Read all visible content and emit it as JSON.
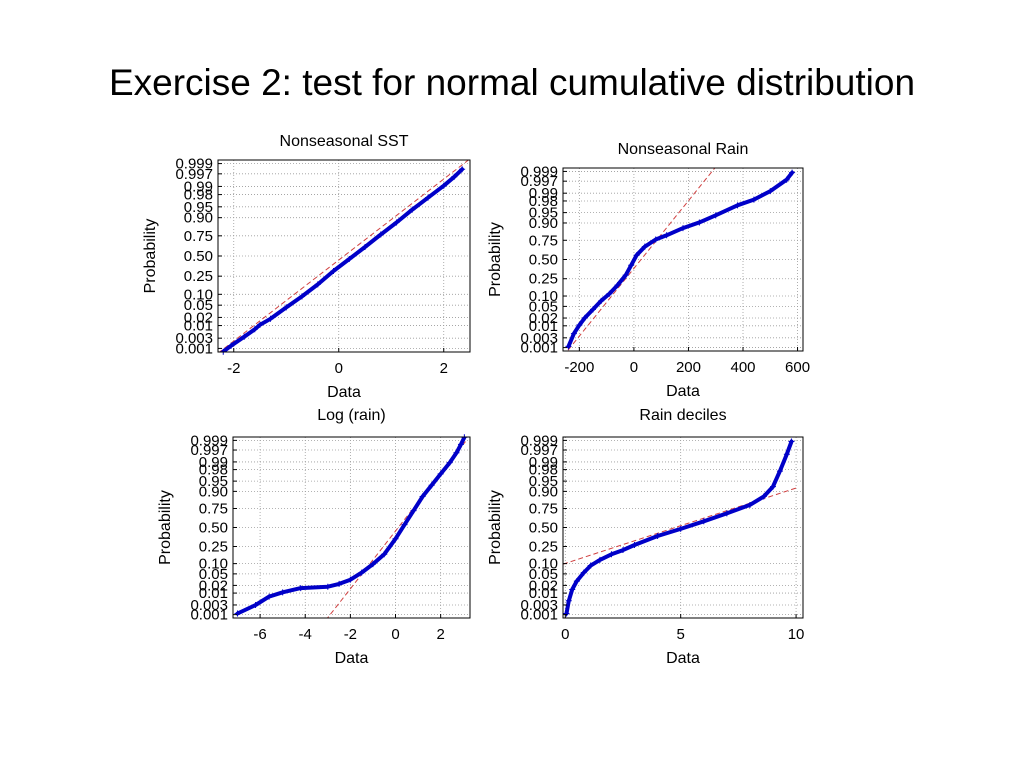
{
  "slide": {
    "title": "Exercise 2: test for normal cumulative distribution"
  },
  "colors": {
    "points": "#0000c8",
    "reference_line": "#d04040",
    "grid": "#9a9a9a",
    "axis": "#000000"
  },
  "chart_data": [
    {
      "type": "scatter",
      "title": "Nonseasonal SST",
      "xlabel": "Data",
      "ylabel": "Probability",
      "xlim": [
        -2.3,
        2.5
      ],
      "xticks": [
        -2,
        0,
        2
      ],
      "xtick_labels": [
        "-2",
        "0",
        "2"
      ],
      "y_scale": "normal-probability",
      "yticks": [
        0.001,
        0.003,
        0.01,
        0.02,
        0.05,
        0.1,
        0.25,
        0.5,
        0.75,
        0.9,
        0.95,
        0.98,
        0.99,
        0.997,
        0.999
      ],
      "ytick_labels": [
        "0.001",
        "0.003",
        "0.01",
        "0.02",
        "0.05",
        "0.10",
        "0.25",
        "0.50",
        "0.75",
        "0.90",
        "0.95",
        "0.98",
        "0.99",
        "0.997",
        "0.999"
      ],
      "grid": true,
      "reference_line": {
        "x": [
          -2.3,
          2.5
        ],
        "z": [
          -3.25,
          3.25
        ]
      },
      "points": [
        [
          -2.2,
          -3.2
        ],
        [
          -2.05,
          -3.0
        ],
        [
          -1.8,
          -2.7
        ],
        [
          -1.6,
          -2.45
        ],
        [
          -1.5,
          -2.3
        ],
        [
          -1.3,
          -2.1
        ],
        [
          -1.0,
          -1.72
        ],
        [
          -0.7,
          -1.35
        ],
        [
          -0.4,
          -0.95
        ],
        [
          -0.1,
          -0.5
        ],
        [
          0.2,
          -0.1
        ],
        [
          0.5,
          0.3
        ],
        [
          0.8,
          0.72
        ],
        [
          1.1,
          1.12
        ],
        [
          1.4,
          1.55
        ],
        [
          1.7,
          1.95
        ],
        [
          2.0,
          2.35
        ],
        [
          2.2,
          2.65
        ],
        [
          2.35,
          2.9
        ]
      ]
    },
    {
      "type": "scatter",
      "title": "Nonseasonal Rain",
      "xlabel": "Data",
      "ylabel": "Probability",
      "xlim": [
        -260,
        620
      ],
      "xticks": [
        -200,
        0,
        200,
        400,
        600
      ],
      "xtick_labels": [
        "-200",
        "0",
        "200",
        "400",
        "600"
      ],
      "y_scale": "normal-probability",
      "yticks": [
        0.001,
        0.003,
        0.01,
        0.02,
        0.05,
        0.1,
        0.25,
        0.5,
        0.75,
        0.9,
        0.95,
        0.98,
        0.99,
        0.997,
        0.999
      ],
      "ytick_labels": [
        "0.001",
        "0.003",
        "0.01",
        "0.02",
        "0.05",
        "0.10",
        "0.25",
        "0.50",
        "0.75",
        "0.90",
        "0.95",
        "0.98",
        "0.99",
        "0.997",
        "0.999"
      ],
      "grid": true,
      "reference_line": {
        "x": [
          -260,
          300
        ],
        "z": [
          -3.4,
          3.25
        ]
      },
      "points": [
        [
          -240,
          -3.05
        ],
        [
          -220,
          -2.6
        ],
        [
          -200,
          -2.3
        ],
        [
          -180,
          -2.05
        ],
        [
          -150,
          -1.75
        ],
        [
          -120,
          -1.45
        ],
        [
          -90,
          -1.2
        ],
        [
          -60,
          -0.9
        ],
        [
          -30,
          -0.55
        ],
        [
          -10,
          -0.2
        ],
        [
          10,
          0.15
        ],
        [
          40,
          0.45
        ],
        [
          80,
          0.7
        ],
        [
          120,
          0.85
        ],
        [
          180,
          1.1
        ],
        [
          240,
          1.3
        ],
        [
          300,
          1.55
        ],
        [
          380,
          1.9
        ],
        [
          440,
          2.1
        ],
        [
          500,
          2.4
        ],
        [
          560,
          2.8
        ],
        [
          580,
          3.05
        ]
      ]
    },
    {
      "type": "scatter",
      "title": "Log (rain)",
      "xlabel": "Data",
      "ylabel": "Probability",
      "xlim": [
        -7.2,
        3.3
      ],
      "xticks": [
        -6,
        -4,
        -2,
        0,
        2
      ],
      "xtick_labels": [
        "-6",
        "-4",
        "-2",
        "0",
        "2"
      ],
      "y_scale": "normal-probability",
      "yticks": [
        0.001,
        0.003,
        0.01,
        0.02,
        0.05,
        0.1,
        0.25,
        0.5,
        0.75,
        0.9,
        0.95,
        0.98,
        0.99,
        0.997,
        0.999
      ],
      "ytick_labels": [
        "0.001",
        "0.003",
        "0.01",
        "0.02",
        "0.05",
        "0.10",
        "0.25",
        "0.50",
        "0.75",
        "0.90",
        "0.95",
        "0.98",
        "0.99",
        "0.997",
        "0.999"
      ],
      "grid": true,
      "reference_line": {
        "x": [
          -3.1,
          3.1
        ],
        "z": [
          -3.3,
          3.05
        ]
      },
      "points": [
        [
          -7.0,
          -3.05
        ],
        [
          -6.2,
          -2.75
        ],
        [
          -5.6,
          -2.45
        ],
        [
          -5.0,
          -2.3
        ],
        [
          -4.2,
          -2.15
        ],
        [
          -3.0,
          -2.1
        ],
        [
          -2.5,
          -2.0
        ],
        [
          -2.0,
          -1.85
        ],
        [
          -1.5,
          -1.6
        ],
        [
          -1.0,
          -1.3
        ],
        [
          -0.5,
          -0.95
        ],
        [
          0.0,
          -0.4
        ],
        [
          0.4,
          0.1
        ],
        [
          0.8,
          0.6
        ],
        [
          1.2,
          1.1
        ],
        [
          1.6,
          1.5
        ],
        [
          2.0,
          1.9
        ],
        [
          2.4,
          2.3
        ],
        [
          2.7,
          2.65
        ],
        [
          2.9,
          2.95
        ],
        [
          3.05,
          3.2
        ]
      ]
    },
    {
      "type": "scatter",
      "title": "Rain deciles",
      "xlabel": "Data",
      "ylabel": "Probability",
      "xlim": [
        -0.1,
        10.3
      ],
      "xticks": [
        0,
        5,
        10
      ],
      "xtick_labels": [
        "0",
        "5",
        "10"
      ],
      "y_scale": "normal-probability",
      "yticks": [
        0.001,
        0.003,
        0.01,
        0.02,
        0.05,
        0.1,
        0.25,
        0.5,
        0.75,
        0.9,
        0.95,
        0.98,
        0.99,
        0.997,
        0.999
      ],
      "ytick_labels": [
        "0.001",
        "0.003",
        "0.01",
        "0.02",
        "0.05",
        "0.10",
        "0.25",
        "0.50",
        "0.75",
        "0.90",
        "0.95",
        "0.98",
        "0.99",
        "0.997",
        "0.999"
      ],
      "grid": true,
      "reference_line": {
        "x": [
          -0.1,
          10.0
        ],
        "z": [
          -1.3,
          1.4
        ]
      },
      "points": [
        [
          0.05,
          -3.05
        ],
        [
          0.15,
          -2.6
        ],
        [
          0.3,
          -2.2
        ],
        [
          0.5,
          -1.9
        ],
        [
          0.8,
          -1.6
        ],
        [
          1.1,
          -1.35
        ],
        [
          1.5,
          -1.15
        ],
        [
          2.0,
          -0.95
        ],
        [
          2.5,
          -0.8
        ],
        [
          3.0,
          -0.62
        ],
        [
          4.0,
          -0.3
        ],
        [
          5.0,
          -0.05
        ],
        [
          6.0,
          0.22
        ],
        [
          7.0,
          0.5
        ],
        [
          8.0,
          0.8
        ],
        [
          8.6,
          1.1
        ],
        [
          9.0,
          1.45
        ],
        [
          9.3,
          2.0
        ],
        [
          9.6,
          2.6
        ],
        [
          9.8,
          3.05
        ]
      ]
    }
  ]
}
